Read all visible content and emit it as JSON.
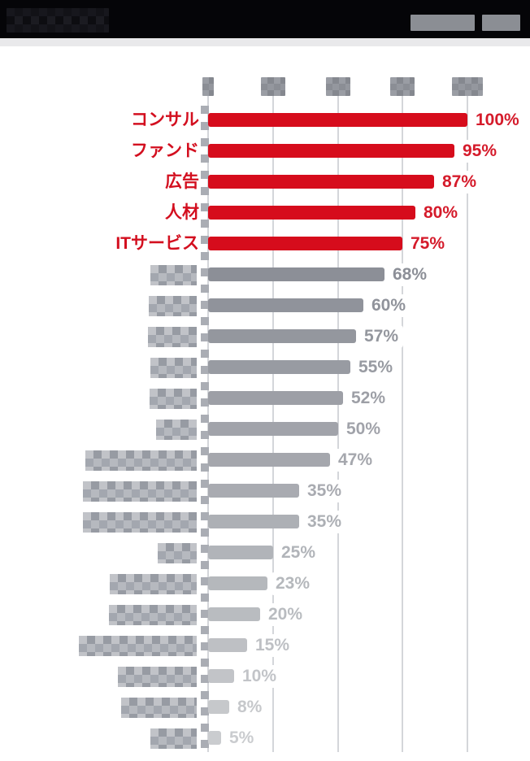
{
  "header": {
    "title": "",
    "title_redacted": true,
    "badges": [
      {
        "label": "",
        "redacted": true
      },
      {
        "label": "",
        "redacted": true
      }
    ]
  },
  "chart_data": {
    "type": "bar",
    "orientation": "horizontal",
    "title": "",
    "xlabel": "",
    "ylabel": "",
    "value_unit": "%",
    "xlim": [
      0,
      100
    ],
    "grid": true,
    "gridline_values": [
      0,
      25,
      50,
      75,
      100
    ],
    "axis_tick_labels_redacted": true,
    "axis_tick_mosaic_widths": [
      14,
      30,
      30,
      30,
      38
    ],
    "legend": null,
    "rows": [
      {
        "category": "コンサル",
        "redacted": false,
        "value": 100,
        "value_label": "100%",
        "highlight": true
      },
      {
        "category": "ファンド",
        "redacted": false,
        "value": 95,
        "value_label": "95%",
        "highlight": true
      },
      {
        "category": "広告",
        "redacted": false,
        "value": 87,
        "value_label": "87%",
        "highlight": true
      },
      {
        "category": "人材",
        "redacted": false,
        "value": 80,
        "value_label": "80%",
        "highlight": true
      },
      {
        "category": "ITサービス",
        "redacted": false,
        "value": 75,
        "value_label": "75%",
        "highlight": true
      },
      {
        "category": "",
        "redacted": true,
        "mosaic_width": 57,
        "value": 68,
        "value_label": "68%",
        "highlight": false
      },
      {
        "category": "",
        "redacted": true,
        "mosaic_width": 59,
        "value": 60,
        "value_label": "60%",
        "highlight": false
      },
      {
        "category": "",
        "redacted": true,
        "mosaic_width": 60,
        "value": 57,
        "value_label": "57%",
        "highlight": false
      },
      {
        "category": "",
        "redacted": true,
        "mosaic_width": 57,
        "value": 55,
        "value_label": "55%",
        "highlight": false
      },
      {
        "category": "",
        "redacted": true,
        "mosaic_width": 58,
        "value": 52,
        "value_label": "52%",
        "highlight": false
      },
      {
        "category": "",
        "redacted": true,
        "mosaic_width": 50,
        "value": 50,
        "value_label": "50%",
        "highlight": false
      },
      {
        "category": "",
        "redacted": true,
        "mosaic_width": 137,
        "value": 47,
        "value_label": "47%",
        "highlight": false
      },
      {
        "category": "",
        "redacted": true,
        "mosaic_width": 140,
        "value": 35,
        "value_label": "35%",
        "highlight": false
      },
      {
        "category": "",
        "redacted": true,
        "mosaic_width": 140,
        "value": 35,
        "value_label": "35%",
        "highlight": false
      },
      {
        "category": "",
        "redacted": true,
        "mosaic_width": 48,
        "value": 25,
        "value_label": "25%",
        "highlight": false
      },
      {
        "category": "",
        "redacted": true,
        "mosaic_width": 107,
        "value": 23,
        "value_label": "23%",
        "highlight": false
      },
      {
        "category": "",
        "redacted": true,
        "mosaic_width": 108,
        "value": 20,
        "value_label": "20%",
        "highlight": false
      },
      {
        "category": "",
        "redacted": true,
        "mosaic_width": 145,
        "value": 15,
        "value_label": "15%",
        "highlight": false
      },
      {
        "category": "",
        "redacted": true,
        "mosaic_width": 97,
        "value": 10,
        "value_label": "10%",
        "highlight": false
      },
      {
        "category": "",
        "redacted": true,
        "mosaic_width": 93,
        "value": 8,
        "value_label": "8%",
        "highlight": false
      },
      {
        "category": "",
        "redacted": true,
        "mosaic_width": 57,
        "value": 5,
        "value_label": "5%",
        "highlight": false
      }
    ],
    "colors": {
      "bar_highlight": "#d60c1c",
      "category_text_highlight": "#d30f1f",
      "value_text_highlight": "#d51b2b",
      "bar_gray_first": "#8c8f97",
      "bar_gray_last": "#cacccf",
      "gridline": "#d4d6da",
      "header_bg": "#050508",
      "header_badge": "#8b8e94"
    }
  }
}
